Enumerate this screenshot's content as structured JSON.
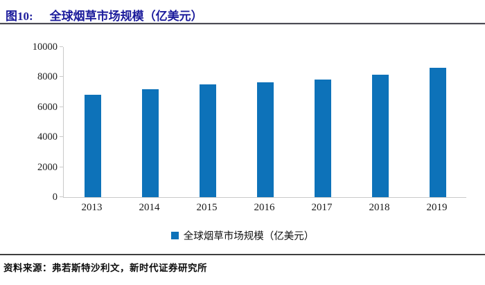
{
  "figure": {
    "label": "图10:",
    "title": "全球烟草市场规模（亿美元）"
  },
  "chart_data": {
    "type": "bar",
    "title": "全球烟草市场规模（亿美元）",
    "categories": [
      "2013",
      "2014",
      "2015",
      "2016",
      "2017",
      "2018",
      "2019"
    ],
    "values": [
      6800,
      7200,
      7500,
      7650,
      7850,
      8150,
      8600
    ],
    "series_name": "全球烟草市场规模（亿美元）",
    "xlabel": "",
    "ylabel": "",
    "ylim": [
      0,
      10000
    ],
    "yticks": [
      0,
      2000,
      4000,
      6000,
      8000,
      10000
    ],
    "grid": false,
    "legend_position": "bottom"
  },
  "legend": {
    "label": "全球烟草市场规模（亿美元）"
  },
  "source": {
    "prefix": "资料来源：",
    "text": "弗若斯特沙利文，新时代证券研究所"
  },
  "colors": {
    "title_navy": "#1c1c9c",
    "bar_blue": "#0d72b9",
    "axis_gray": "#c9c9c9",
    "rule_dark": "#4c4c55"
  }
}
